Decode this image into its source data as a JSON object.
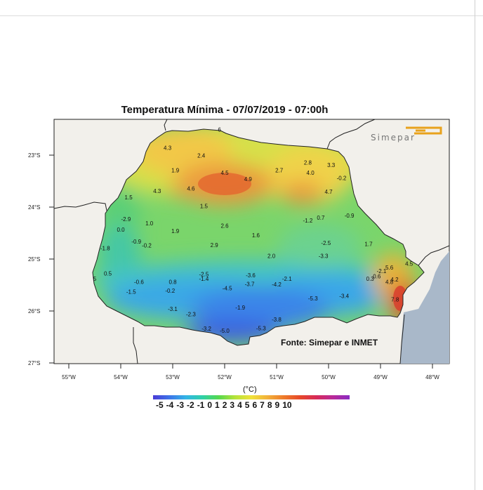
{
  "title": "Temperatura Mínima - 07/07/2019 - 07:00h",
  "logo_text": "Simepar",
  "source_text": "Fonte: Simepar e INMET",
  "colorbar": {
    "unit": "(°C)",
    "labels": [
      "-5",
      "-4",
      "-3",
      "-2",
      "-1",
      "0",
      "1",
      "2",
      "3",
      "4",
      "5",
      "6",
      "7",
      "8",
      "9",
      "10"
    ]
  },
  "axes": {
    "lat_ticks": [
      "23°S",
      "24°S",
      "25°S",
      "26°S",
      "27°S"
    ],
    "lon_ticks": [
      "55°W",
      "54°W",
      "53°W",
      "52°W",
      "51°W",
      "50°W",
      "49°W",
      "48°W"
    ]
  },
  "stations": [
    {
      "v": "4.3",
      "lon": -53.1,
      "lat": -22.9
    },
    {
      "v": "2.4",
      "lon": -52.45,
      "lat": -23.05
    },
    {
      "v": "1.9",
      "lon": -52.95,
      "lat": -23.33
    },
    {
      "v": "2.8",
      "lon": -50.4,
      "lat": -23.18
    },
    {
      "v": "3.3",
      "lon": -49.95,
      "lat": -23.23
    },
    {
      "v": "2.7",
      "lon": -50.95,
      "lat": -23.33
    },
    {
      "v": "4.0",
      "lon": -50.35,
      "lat": -23.38
    },
    {
      "v": "4.5",
      "lon": -52.0,
      "lat": -23.38
    },
    {
      "v": "4.9",
      "lon": -51.55,
      "lat": -23.5
    },
    {
      "v": "-0.2",
      "lon": -49.75,
      "lat": -23.48
    },
    {
      "v": "4.3",
      "lon": -53.3,
      "lat": -23.73
    },
    {
      "v": "4.6",
      "lon": -52.65,
      "lat": -23.68
    },
    {
      "v": "4.7",
      "lon": -50.0,
      "lat": -23.74
    },
    {
      "v": "1.5",
      "lon": -53.85,
      "lat": -23.85
    },
    {
      "v": "1.5",
      "lon": -52.4,
      "lat": -24.02
    },
    {
      "v": "-2.9",
      "lon": -53.9,
      "lat": -24.27
    },
    {
      "v": "1.0",
      "lon": -53.45,
      "lat": -24.35
    },
    {
      "v": "2.6",
      "lon": -52.0,
      "lat": -24.4
    },
    {
      "v": "-1.2",
      "lon": -50.4,
      "lat": -24.3
    },
    {
      "v": "0.7",
      "lon": -50.15,
      "lat": -24.24
    },
    {
      "v": "-0.9",
      "lon": -49.6,
      "lat": -24.2
    },
    {
      "v": "0.0",
      "lon": -54.0,
      "lat": -24.47
    },
    {
      "v": "1.9",
      "lon": -52.95,
      "lat": -24.5
    },
    {
      "v": "1.6",
      "lon": -51.4,
      "lat": -24.58
    },
    {
      "v": "-0.9",
      "lon": -53.7,
      "lat": -24.7
    },
    {
      "v": "-0.2",
      "lon": -53.5,
      "lat": -24.78
    },
    {
      "v": "2.9",
      "lon": -52.2,
      "lat": -24.77
    },
    {
      "v": "-2.5",
      "lon": -50.05,
      "lat": -24.73
    },
    {
      "v": "1.7",
      "lon": -49.23,
      "lat": -24.75
    },
    {
      "v": "-1.8",
      "lon": -54.3,
      "lat": -24.83
    },
    {
      "v": "2.0",
      "lon": -51.1,
      "lat": -24.98
    },
    {
      "v": "-3.3",
      "lon": -50.1,
      "lat": -24.98
    },
    {
      "v": "5.6",
      "lon": -48.83,
      "lat": -25.2
    },
    {
      "v": "4.5",
      "lon": -48.45,
      "lat": -25.13
    },
    {
      "v": "0.5",
      "lon": -54.25,
      "lat": -25.32
    },
    {
      "v": "-2.5",
      "lon": -52.4,
      "lat": -25.33
    },
    {
      "v": "-1.4",
      "lon": -52.4,
      "lat": -25.42
    },
    {
      "v": "-3.6",
      "lon": -51.5,
      "lat": -25.35
    },
    {
      "v": "-2.1",
      "lon": -50.8,
      "lat": -25.42
    },
    {
      "v": "-2.1",
      "lon": -48.98,
      "lat": -25.27
    },
    {
      "v": "0.3",
      "lon": -49.2,
      "lat": -25.42
    },
    {
      "v": "0.6",
      "lon": -49.07,
      "lat": -25.37
    },
    {
      "v": "4.2",
      "lon": -48.73,
      "lat": -25.43
    },
    {
      "v": "4.8",
      "lon": -48.83,
      "lat": -25.48
    },
    {
      "v": "-0.6",
      "lon": -53.65,
      "lat": -25.48
    },
    {
      "v": "0.8",
      "lon": -53.0,
      "lat": -25.48
    },
    {
      "v": "-3.7",
      "lon": -51.52,
      "lat": -25.52
    },
    {
      "v": "-4.2",
      "lon": -51.0,
      "lat": -25.53
    },
    {
      "v": "-1.5",
      "lon": -53.8,
      "lat": -25.67
    },
    {
      "v": "-0.2",
      "lon": -53.05,
      "lat": -25.65
    },
    {
      "v": "-4.5",
      "lon": -51.95,
      "lat": -25.6
    },
    {
      "v": "-5.3",
      "lon": -50.3,
      "lat": -25.8
    },
    {
      "v": "-3.4",
      "lon": -49.7,
      "lat": -25.75
    },
    {
      "v": "7.8",
      "lon": -48.72,
      "lat": -25.82
    },
    {
      "v": "-3.1",
      "lon": -53.0,
      "lat": -26.0
    },
    {
      "v": "-1.9",
      "lon": -51.7,
      "lat": -25.97
    },
    {
      "v": "-2.3",
      "lon": -52.65,
      "lat": -26.1
    },
    {
      "v": "-3.8",
      "lon": -51.0,
      "lat": -26.2
    },
    {
      "v": "-3.2",
      "lon": -52.35,
      "lat": -26.38
    },
    {
      "v": "-5.0",
      "lon": -52.0,
      "lat": -26.42
    },
    {
      "v": "-5.3",
      "lon": -51.3,
      "lat": -26.37
    },
    {
      "v": "6",
      "lon": -52.1,
      "lat": -22.55
    },
    {
      "v": "5",
      "lon": -54.5,
      "lat": -25.42
    }
  ]
}
